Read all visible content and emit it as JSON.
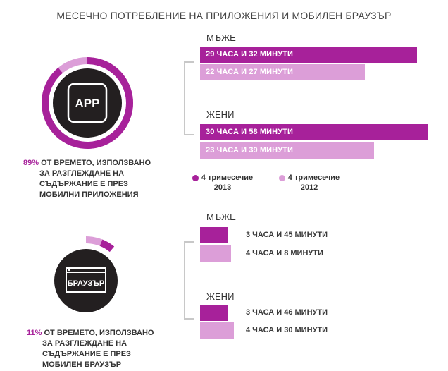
{
  "title": "МЕСЕЧНО ПОТРЕБЛЕНИЕ НА ПРИЛОЖЕНИЯ И МОБИЛЕН БРАУЗЪР",
  "colors": {
    "dark": "#a7219a",
    "light": "#dc9ed8",
    "circle": "#231f20",
    "bracket": "#c8c8c8"
  },
  "app": {
    "icon_label": "APP",
    "percent": "89%",
    "share": 89,
    "description": [
      "ОТ ВРЕМЕТО, ИЗПОЛЗВАНО",
      "ЗА РАЗГЛЕЖДАНЕ НА",
      "СЪДЪРЖАНИЕ Е ПРЕЗ",
      "МОБИЛНИ ПРИЛОЖЕНИЯ"
    ],
    "men_label": "МЪЖЕ",
    "women_label": "ЖЕНИ",
    "men": [
      {
        "label": "29 ЧАСА И 32 МИНУТИ",
        "minutes": 1772
      },
      {
        "label": "22 ЧАСА И 27 МИНУТИ",
        "minutes": 1347
      }
    ],
    "women": [
      {
        "label": "30 ЧАСА И 58 МИНУТИ",
        "minutes": 1858
      },
      {
        "label": "23 ЧАСА И 39 МИНУТИ",
        "minutes": 1419
      }
    ]
  },
  "legend": [
    {
      "line1": "4 тримесечие",
      "line2": "2013"
    },
    {
      "line1": "4 тримесечие",
      "line2": "2012"
    }
  ],
  "browser": {
    "icon_label": "БРАУЗЪР",
    "percent": "11%",
    "share": 11,
    "description": [
      "ОТ ВРЕМЕТО, ИЗПОЛЗВАНО",
      "ЗА РАЗГЛЕЖДАНЕ НА",
      "СЪДЪРЖАНИЕ Е ПРЕЗ",
      "МОБИЛЕН БРАУЗЪР"
    ],
    "men_label": "МЪЖЕ",
    "women_label": "ЖЕНИ",
    "men": [
      {
        "label": "3 ЧАСА И 45 МИНУТИ",
        "minutes": 225
      },
      {
        "label": "4 ЧАСА И 8 МИНУТИ",
        "minutes": 248
      }
    ],
    "women": [
      {
        "label": "3 ЧАСА И 46 МИНУТИ",
        "minutes": 226
      },
      {
        "label": "4 ЧАСА И 30 МИНУТИ",
        "minutes": 270
      }
    ]
  },
  "chart_data": [
    {
      "type": "bar",
      "title": "МЕСЕЧНО ПОТРЕБЛЕНИЕ НА ПРИЛОЖЕНИЯ И МОБИЛЕН БРАУЗЪР",
      "categories": [
        "МЪЖЕ",
        "ЖЕНИ"
      ],
      "series": [
        {
          "name": "4 тримесечие 2013",
          "values": [
            1772,
            1858
          ]
        },
        {
          "name": "4 тримесечие 2012",
          "values": [
            1347,
            1419
          ]
        }
      ]
    },
    {
      "type": "bar",
      "categories": [
        "МЪЖЕ",
        "ЖЕНИ"
      ],
      "series": [
        {
          "name": "4 тримесечие 2013",
          "values": [
            225,
            226
          ]
        },
        {
          "name": "4 тримесечие 2012",
          "values": [
            248,
            270
          ]
        }
      ]
    }
  ]
}
